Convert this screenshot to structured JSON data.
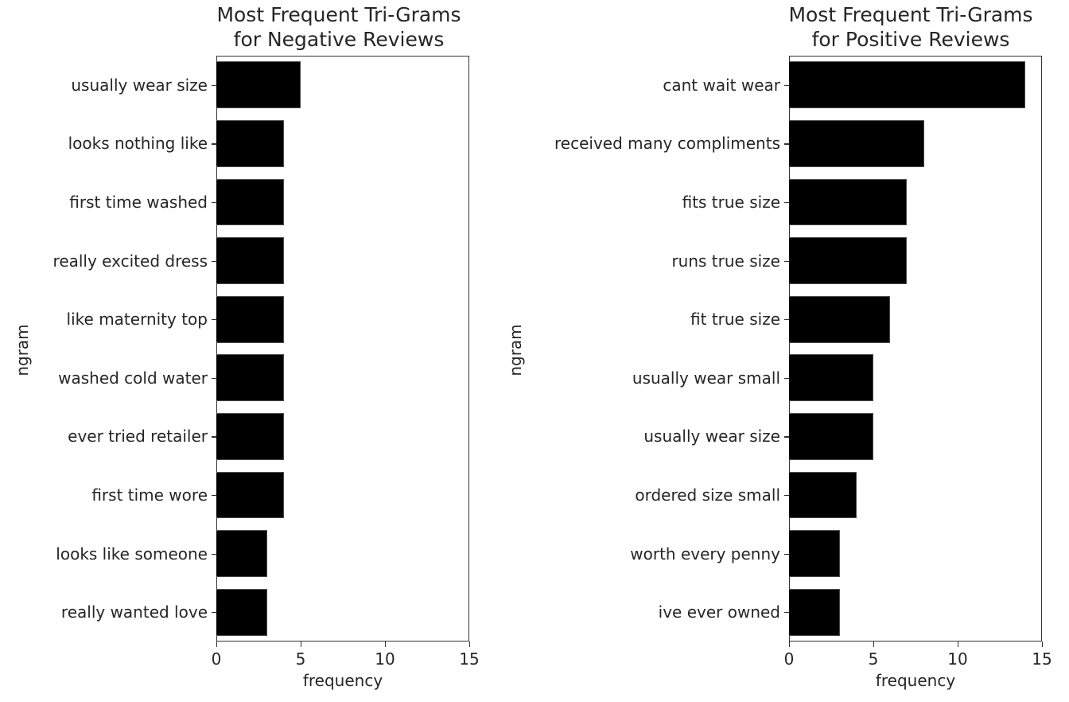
{
  "chart_data": [
    {
      "type": "bar",
      "orientation": "horizontal",
      "title": "Most Frequent Tri-Grams\nfor Negative Reviews",
      "title_line1": "Most Frequent Tri-Grams",
      "title_line2": "for Negative Reviews",
      "xlabel": "frequency",
      "ylabel": "ngram",
      "xlim": [
        0,
        15
      ],
      "xticks": [
        "0",
        "5",
        "10",
        "15"
      ],
      "categories": [
        "usually wear size",
        "looks nothing like",
        "first time washed",
        "really excited dress",
        "like maternity top",
        "washed cold water",
        "ever tried retailer",
        "first time wore",
        "looks like someone",
        "really wanted love"
      ],
      "values": [
        5,
        4,
        4,
        4,
        4,
        4,
        4,
        4,
        3,
        3
      ],
      "bar_color": "#000000",
      "grid": false
    },
    {
      "type": "bar",
      "orientation": "horizontal",
      "title": "Most Frequent Tri-Grams\nfor Positive Reviews",
      "title_line1": "Most Frequent Tri-Grams",
      "title_line2": "for Positive Reviews",
      "xlabel": "frequency",
      "ylabel": "ngram",
      "xlim": [
        0,
        15
      ],
      "xticks": [
        "0",
        "5",
        "10",
        "15"
      ],
      "categories": [
        "cant wait wear",
        "received many compliments",
        "fits true size",
        "runs true size",
        "fit true size",
        "usually wear small",
        "usually wear size",
        "ordered size small",
        "worth every penny",
        "ive ever owned"
      ],
      "values": [
        14,
        8,
        7,
        7,
        6,
        5,
        5,
        4,
        3,
        3
      ],
      "bar_color": "#000000",
      "grid": false
    }
  ]
}
